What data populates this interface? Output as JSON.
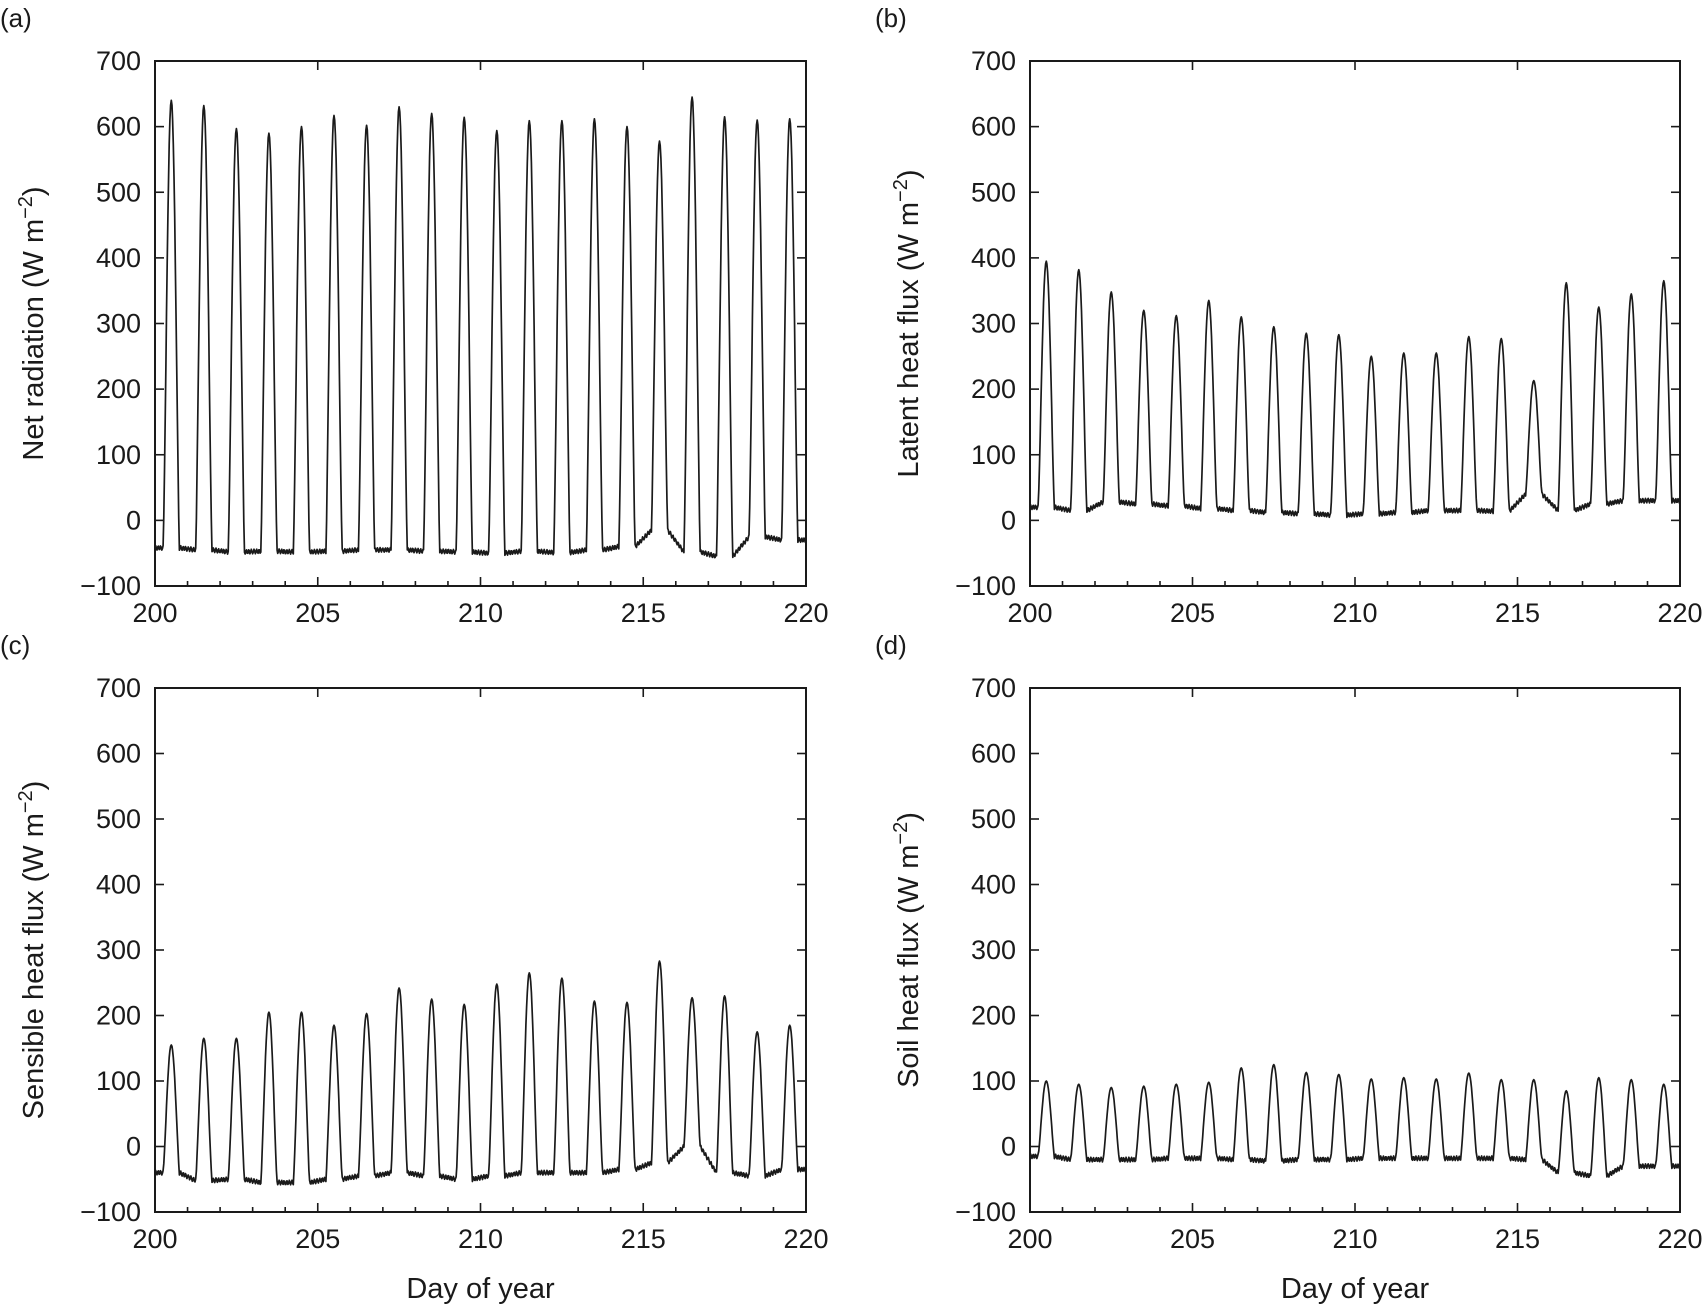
{
  "chart_data": [
    {
      "type": "line",
      "panel_label": "(a)",
      "xlabel": "",
      "ylabel": "Net radiation (W m",
      "ylabel_sup": "−2",
      "ylabel_close": ")",
      "xlim": [
        200,
        220
      ],
      "ylim": [
        -100,
        700
      ],
      "xticks": [
        "200",
        "205",
        "210",
        "215",
        "220"
      ],
      "yticks": [
        "−100",
        "0",
        "100",
        "200",
        "300",
        "400",
        "500",
        "600",
        "700"
      ],
      "series": [
        {
          "night_base": [
            -42,
            -45,
            -48,
            -47,
            -48,
            -47,
            -45,
            -45,
            -47,
            -48,
            -50,
            -47,
            -49,
            -45,
            -40,
            -15,
            -48,
            -55,
            -25,
            -30
          ],
          "day_peak": [
            640,
            632,
            597,
            590,
            600,
            617,
            602,
            630,
            620,
            614,
            594,
            609,
            609,
            612,
            600,
            578,
            645,
            615,
            610,
            612
          ]
        }
      ]
    },
    {
      "type": "line",
      "panel_label": "(b)",
      "xlabel": "",
      "ylabel": "Latent heat flux (W m",
      "ylabel_sup": "−2",
      "ylabel_close": ")",
      "xlim": [
        200,
        220
      ],
      "ylim": [
        -100,
        700
      ],
      "xticks": [
        "200",
        "205",
        "210",
        "215",
        "220"
      ],
      "yticks": [
        "−100",
        "0",
        "100",
        "200",
        "300",
        "400",
        "500",
        "600",
        "700"
      ],
      "series": [
        {
          "night_base": [
            20,
            15,
            28,
            25,
            22,
            18,
            15,
            12,
            10,
            8,
            10,
            12,
            15,
            15,
            14,
            40,
            15,
            25,
            30,
            30
          ],
          "day_peak": [
            395,
            382,
            348,
            320,
            312,
            335,
            310,
            295,
            285,
            283,
            250,
            255,
            255,
            280,
            277,
            213,
            362,
            325,
            345,
            365
          ]
        }
      ]
    },
    {
      "type": "line",
      "panel_label": "(c)",
      "xlabel": "Day of year",
      "ylabel": "Sensible heat flux (W m",
      "ylabel_sup": "−2",
      "ylabel_close": ")",
      "xlim": [
        200,
        220
      ],
      "ylim": [
        -100,
        700
      ],
      "xticks": [
        "200",
        "205",
        "210",
        "215",
        "220"
      ],
      "yticks": [
        "−100",
        "0",
        "100",
        "200",
        "300",
        "400",
        "500",
        "600",
        "700"
      ],
      "series": [
        {
          "night_base": [
            -40,
            -52,
            -50,
            -55,
            -55,
            -50,
            -45,
            -40,
            -45,
            -50,
            -45,
            -40,
            -40,
            -40,
            -35,
            -25,
            0,
            -40,
            -45,
            -35
          ],
          "day_peak": [
            155,
            165,
            165,
            205,
            205,
            185,
            203,
            242,
            225,
            217,
            248,
            265,
            257,
            222,
            220,
            283,
            227,
            230,
            175,
            185
          ]
        }
      ]
    },
    {
      "type": "line",
      "panel_label": "(d)",
      "xlabel": "Day of year",
      "ylabel": "Soil heat flux (W m",
      "ylabel_sup": "−2",
      "ylabel_close": ")",
      "xlim": [
        200,
        220
      ],
      "ylim": [
        -100,
        700
      ],
      "xticks": [
        "200",
        "205",
        "210",
        "215",
        "220"
      ],
      "yticks": [
        "−100",
        "0",
        "100",
        "200",
        "300",
        "400",
        "500",
        "600",
        "700"
      ],
      "series": [
        {
          "night_base": [
            -15,
            -20,
            -20,
            -20,
            -18,
            -18,
            -20,
            -22,
            -20,
            -20,
            -18,
            -18,
            -18,
            -18,
            -18,
            -20,
            -40,
            -45,
            -30,
            -30
          ],
          "day_peak": [
            100,
            95,
            90,
            92,
            95,
            98,
            120,
            125,
            113,
            110,
            103,
            105,
            103,
            112,
            102,
            102,
            85,
            105,
            102,
            95
          ]
        }
      ]
    }
  ]
}
